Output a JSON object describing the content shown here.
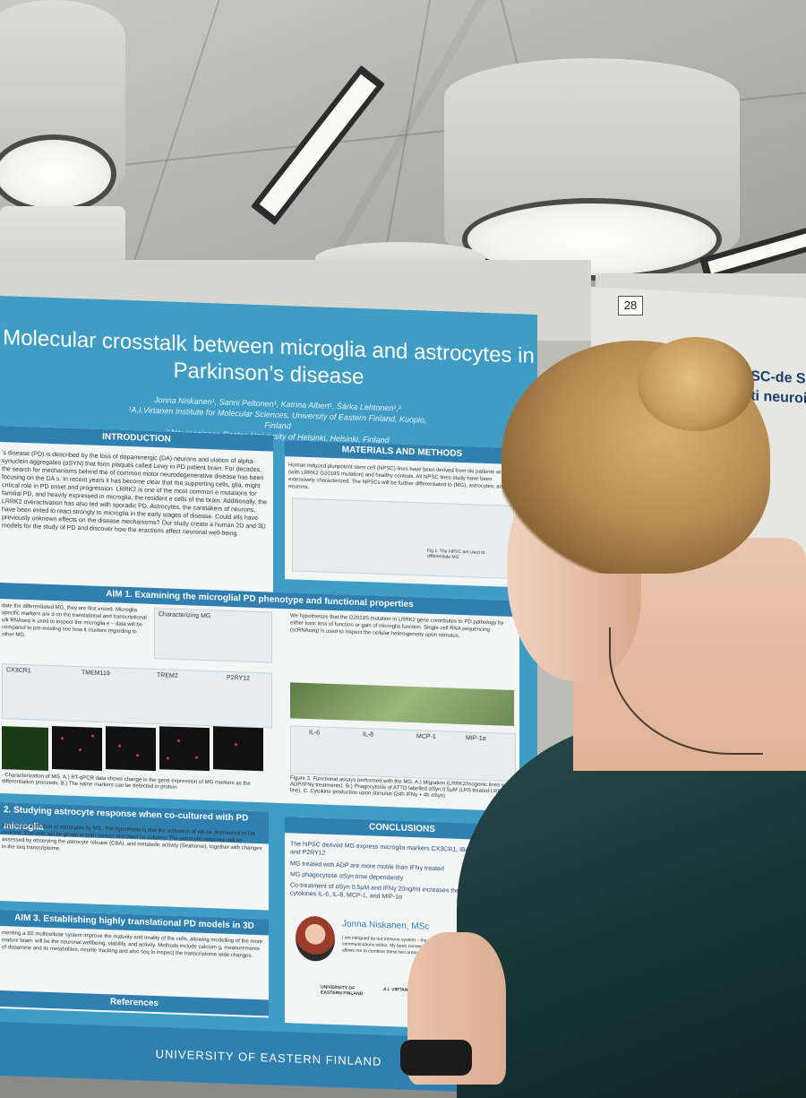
{
  "poster": {
    "title": "Molecular crosstalk between microglia and astrocytes in Parkinson’s disease",
    "authors": "Jonna Niskanen¹, Sanni Peltonen¹, Katrina Albert¹, Šárka Lehtonen¹,²",
    "affiliation_1": "¹A.I.Virtanen Institute for Molecular Sciences, University of Eastern Finland, Kuopio, Finland",
    "affiliation_2": "² Neuroscience Center, University of Helsinki, Helsinki, Finland",
    "sections": {
      "introduction": "INTRODUCTION",
      "materials": "MATERIALS AND METHODS",
      "aim1": "AIM 1. Examining the microglial PD phenotype and functional properties",
      "aim2": "2. Studying astrocyte response when co-cultured with PD microglia",
      "aim3": "AIM 3. Establishing highly translational PD models in 3D",
      "conclusions": "CONCLUSIONS",
      "references": "References"
    },
    "intro_text": "’s disease (PD) is described by the loss of dopaminergic (DA) neurons and ulation of alpha-synuclein aggregates (αSYN) that form plaques called Lewy in PD patient brain. For decades, the search for mechanisms behind the of common motor neurodegenerative disease has been focusing on the DA s. In recent years it has become clear that the supporting cells, glia, might critical role in PD onset and progression. LRRK2 is one of the most common e mutations for familial PD, and heavily expressed in microglia, the resident e cells of the brain. Additionally, the LRRK2 overactivation has also ted with sporadic PD. Astrocytes, the caretakers of neurons, have been ented to react strongly to microglia in the early stages of disease. Could ells have previously unknown effects on the disease mechanisms? Our study create a human 2D and 3D models for the study of PD and discover how the eractions affect neuronal well-being.",
    "methods_text": "Human induced pluripotent stem cell (hiPSC) lines have been derived from ski patients with PD (with LRRK2 G2019S mutation) and healthy controls. All hiPSC lines study have been extensively characterized. The hiPSCs will be further differentiated to (MG), astrocytes, and DA neurons.",
    "fig1_caption": "Fig 1. The hiPSC are used to differentiate MG",
    "aim1_right_text": "We hypothesize that the G2019S mutation in LRRK2 gene contributes to PD pathology by either toxic loss of function or gain of microglia function. Single cell RNA sequencing (scRNAseq) is used to inspect the cellular heterogeneity upon stimulus.",
    "aim1_left_text": "date the differentiated MG, they are first erized. Microglia specific markers are d on the translational and transcriptional ulk RNAseq is used to inspect the microglia e – data will be compared to pre-existing see how it clusters regarding to other MG.",
    "characterizing_label": "Characterizing MG",
    "markers": [
      "CX3CR1",
      "TMEM119",
      "TREM2",
      "P2RY12"
    ],
    "fig2_caption": ". Characterization of MG. A.) RT-qPCR data shows change in the gene expression of MG markers as the differentiation proceeds. B.) The same markers can be detected in protein",
    "fig3_caption": "Figure 3. Functional assays performed with the MG. A.) Migration (LRRK2/Isogenic lines with ADP/IFNγ treatments). B.) Phagocytosis of ATTO labelled αSyn 0.5μM (LPS treated LRRK2 line). C. Cytokine production upon stimulus (24h IFNγ + 4h αSyn)",
    "cytokines": [
      "IL-6",
      "IL-8",
      "MCP-1",
      "MIP-1α"
    ],
    "aim2_text": "pect to see activation of astrocytes by MG. The hypothesis is that the activation of will be detrimental to DA neurons. The cells will be grown in both contact and ntact co-cultures. The astrocytic response will be assessed by observing the astrocyte release (CBA), and metabolic activity (Seahorse), together with changes in the seq transcriptome.",
    "aim3_text": "menting a 3D multicellular system improve the maturity and onality of the cells, allowing modelling of the more mature brain. will be the neuronal wellbeing, viability, and activity. Methods include calcium g, measurements of dopamine and its metabolites, neurite tracking and also seq to inspect the transcriptome wide changes.",
    "conclusions": [
      "The hiPSC derived MG express microglia markers CX3CR1, IBA1, TREM119, and P2RY12",
      "MG treated with ADP are more motile than IFNγ treated",
      "MG phagocytose αSyn time dependently",
      "Co-treatment of αSyn 0.5μM and IFNγ 20ng/ml increases the release of cytokines IL-6, IL-8, MCP-1, and MIP-1α"
    ],
    "presenter_name": "Jonna Niskanen, MSc",
    "presenter_bio": "I am intrigued by our immune system – the body's and the intercellular communications within. My been connected to cellular communications in project allows me to combine these two areas",
    "logo_1": "UNIVERSITY OF EASTERN FINLAND",
    "logo_2": "A.I. VIRTANEN",
    "footer": "UNIVERSITY OF EASTERN FINLAND"
  },
  "neighbor_poster": {
    "number": "28",
    "title": "an iPSC-de S mutati neuroi"
  }
}
